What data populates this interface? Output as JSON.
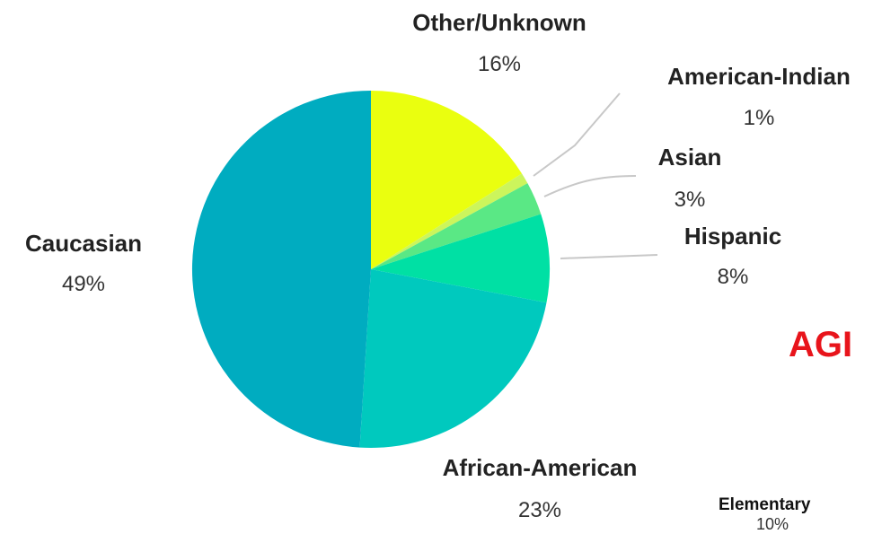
{
  "chart_data": {
    "type": "pie",
    "title": "",
    "slices": [
      {
        "label": "Other/Unknown",
        "value": 16,
        "display": "16%",
        "color": "#eaff0f"
      },
      {
        "label": "American-Indian",
        "value": 1,
        "display": "1%",
        "color": "#ccf55c"
      },
      {
        "label": "Asian",
        "value": 3,
        "display": "3%",
        "color": "#5ae885"
      },
      {
        "label": "Hispanic",
        "value": 8,
        "display": "8%",
        "color": "#00e0a4"
      },
      {
        "label": "African-American",
        "value": 23,
        "display": "23%",
        "color": "#00c9be"
      },
      {
        "label": "Caucasian",
        "value": 49,
        "display": "49%",
        "color": "#00acc0"
      }
    ],
    "start_angle_deg": 0,
    "direction": "clockwise"
  },
  "partial_heading": {
    "text": "AGI",
    "color": "#e8141b"
  },
  "partial_chart": {
    "label": "Elementary",
    "pct": "10%"
  }
}
